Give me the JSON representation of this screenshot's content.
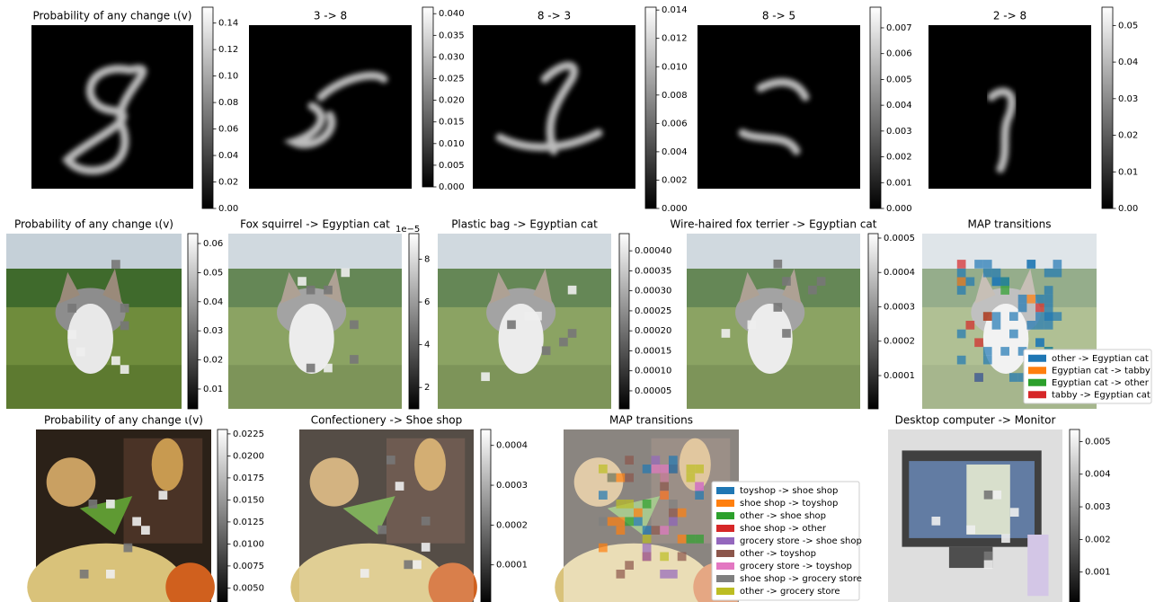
{
  "panels": [
    {
      "title": "Probability of any change ι(v)",
      "colorbar": {
        "lim": [
          0,
          0.152
        ],
        "ticks": [
          {
            "value": 0,
            "label": "0.00"
          },
          0.02,
          0.04,
          0.06,
          0.08,
          {
            "value": 0.1,
            "label": "0.10"
          },
          0.12,
          0.14
        ]
      }
    },
    {
      "title": "3 -> 8",
      "colorbar": {
        "lim": [
          0,
          0.0415
        ],
        "ticks": [
          {
            "value": 0,
            "label": "0.000"
          },
          0.005,
          {
            "value": 0.01,
            "label": "0.010"
          },
          0.015,
          {
            "value": 0.02,
            "label": "0.020"
          },
          0.025,
          {
            "value": 0.03,
            "label": "0.030"
          },
          0.035,
          {
            "value": 0.04,
            "label": "0.040"
          }
        ]
      }
    },
    {
      "title": "8 -> 3",
      "colorbar": {
        "lim": [
          0,
          0.0142
        ],
        "ticks": [
          {
            "value": 0,
            "label": "0.000"
          },
          0.002,
          0.004,
          0.006,
          0.008,
          {
            "value": 0.01,
            "label": "0.010"
          },
          0.012,
          0.014
        ]
      }
    },
    {
      "title": "8 -> 5",
      "colorbar": {
        "lim": [
          0,
          0.0078
        ],
        "ticks": [
          {
            "value": 0,
            "label": "0.000"
          },
          0.001,
          0.002,
          0.003,
          0.004,
          0.005,
          0.006,
          0.007
        ]
      }
    },
    {
      "title": "2 -> 8",
      "colorbar": {
        "lim": [
          0,
          0.055
        ],
        "ticks": [
          {
            "value": 0,
            "label": "0.00"
          },
          0.01,
          0.02,
          0.03,
          0.04,
          0.05
        ]
      }
    },
    {
      "title": "Probability of any change ι(v)",
      "colorbar": {
        "lim": [
          0.0032,
          0.0634
        ],
        "ticks": [
          0.01,
          0.02,
          0.03,
          0.04,
          0.05,
          0.06
        ]
      }
    },
    {
      "title": "Fox squirrel -> Egyptian cat",
      "colorbar": {
        "lim": [
          1,
          9.2
        ],
        "offset": "1e−5",
        "ticks": [
          2,
          4,
          6,
          8
        ]
      }
    },
    {
      "title": "Plastic bag -> Egyptian cat",
      "colorbar": {
        "lim": [
          5e-06,
          0.000443
        ],
        "ticks": [
          5e-05,
          {
            "value": 0.0001,
            "label": "0.00010"
          },
          0.00015,
          {
            "value": 0.0002,
            "label": "0.00020"
          },
          0.00025,
          {
            "value": 0.0003,
            "label": "0.00030"
          },
          0.00035,
          {
            "value": 0.0004,
            "label": "0.00040"
          }
        ]
      }
    },
    {
      "title": "Wire-haired fox terrier -> Egyptian cat",
      "colorbar": {
        "lim": [
          3.3e-06,
          0.000513
        ],
        "ticks": [
          0.0001,
          0.0002,
          0.0003,
          0.0004,
          0.0005
        ]
      }
    },
    {
      "title": "MAP transitions",
      "legend": [
        {
          "label": "other -> Egyptian cat",
          "color": "#1f77b4"
        },
        {
          "label": "Egyptian cat -> tabby",
          "color": "#ff7f0e"
        },
        {
          "label": "Egyptian cat -> other",
          "color": "#2ca02c"
        },
        {
          "label": "tabby -> Egyptian cat",
          "color": "#d62728"
        }
      ]
    },
    {
      "title": "Probability of any change ι(v)",
      "colorbar": {
        "lim": [
          0.0031,
          0.023
        ],
        "ticks": [
          {
            "value": 0.005,
            "label": "0.0050"
          },
          0.0075,
          {
            "value": 0.01,
            "label": "0.0100"
          },
          0.0125,
          {
            "value": 0.015,
            "label": "0.0150"
          },
          0.0175,
          {
            "value": 0.02,
            "label": "0.0200"
          },
          0.0225
        ]
      }
    },
    {
      "title": "Confectionery -> Shoe shop",
      "colorbar": {
        "lim": [
          0.0,
          0.00044
        ],
        "ticks": [
          0.0001,
          0.0002,
          0.0003,
          0.0004
        ]
      }
    },
    {
      "title": "MAP transitions",
      "legend": [
        {
          "label": "toyshop -> shoe shop",
          "color": "#1f77b4"
        },
        {
          "label": "shoe shop -> toyshop",
          "color": "#ff7f0e"
        },
        {
          "label": "other -> shoe shop",
          "color": "#2ca02c"
        },
        {
          "label": "shoe shop -> other",
          "color": "#d62728"
        },
        {
          "label": "grocery store -> shoe shop",
          "color": "#9467bd"
        },
        {
          "label": "other -> toyshop",
          "color": "#8c564b"
        },
        {
          "label": "grocery store -> toyshop",
          "color": "#e377c2"
        },
        {
          "label": "shoe shop -> grocery store",
          "color": "#7f7f7f"
        },
        {
          "label": "other -> grocery store",
          "color": "#bcbd22"
        }
      ]
    },
    {
      "title": "Desktop computer -> Monitor",
      "colorbar": {
        "lim": [
          0.0,
          0.00537
        ],
        "ticks": [
          0.001,
          0.002,
          0.003,
          0.004,
          0.005
        ]
      }
    }
  ]
}
